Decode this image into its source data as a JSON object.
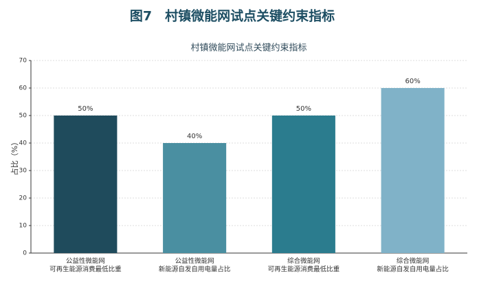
{
  "figure_caption": "图7　村镇微能网试点关键约束指标",
  "chart_data": {
    "type": "bar",
    "title": "村镇微能网试点关键约束指标",
    "y_label": "占比（%）",
    "categories": [
      [
        "公益性微能网",
        "可再生能源消费最低比重"
      ],
      [
        "公益性微能网",
        "新能源自发自用电量占比"
      ],
      [
        "综合微能网",
        "可再生能源消费最低比重"
      ],
      [
        "综合微能网",
        "新能源自发自用电量占比"
      ]
    ],
    "values": [
      50,
      40,
      50,
      60
    ],
    "value_labels": [
      "50%",
      "40%",
      "50%",
      "60%"
    ],
    "colors": [
      "#1f4b5c",
      "#4a8fa1",
      "#2b7c8e",
      "#80b2c8"
    ],
    "ylim": [
      0,
      70
    ],
    "yticks": [
      0,
      10,
      20,
      30,
      40,
      50,
      60,
      70
    ],
    "grid": true
  }
}
